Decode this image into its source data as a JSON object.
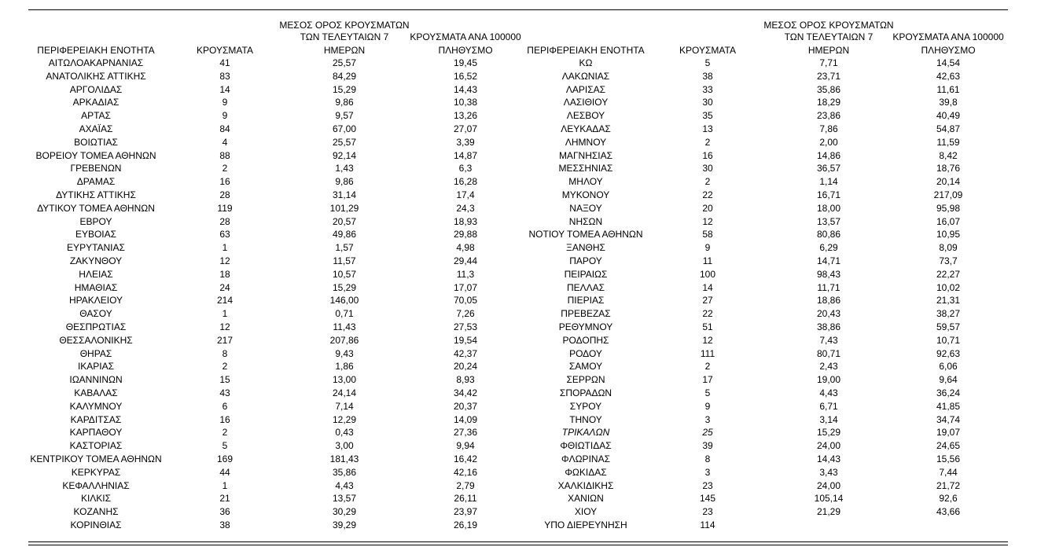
{
  "tables": [
    {
      "headers": [
        [
          "ΠΕΡΙΦΕΡΕΙΑΚΗ ΕΝΟΤΗΤΑ"
        ],
        [
          "ΚΡΟΥΣΜΑΤΑ"
        ],
        [
          "ΜΕΣΟΣ ΟΡΟΣ ΚΡΟΥΣΜΑΤΩΝ",
          "ΤΩΝ ΤΕΛΕΥΤΑΙΩΝ 7",
          "ΗΜΕΡΩΝ"
        ],
        [
          "ΚΡΟΥΣΜΑΤΑ ΑΝΑ 100000",
          "ΠΛΗΘΥΣΜΟ"
        ]
      ],
      "rows": [
        [
          "ΑΙΤΩΛΟΑΚΑΡΝΑΝΙΑΣ",
          "41",
          "25,57",
          "19,45"
        ],
        [
          "ΑΝΑΤΟΛΙΚΗΣ ΑΤΤΙΚΗΣ",
          "83",
          "84,29",
          "16,52"
        ],
        [
          "ΑΡΓΟΛΙΔΑΣ",
          "14",
          "15,29",
          "14,43"
        ],
        [
          "ΑΡΚΑΔΙΑΣ",
          "9",
          "9,86",
          "10,38"
        ],
        [
          "ΑΡΤΑΣ",
          "9",
          "9,57",
          "13,26"
        ],
        [
          "ΑΧΑΪΑΣ",
          "84",
          "67,00",
          "27,07"
        ],
        [
          "ΒΟΙΩΤΙΑΣ",
          "4",
          "25,57",
          "3,39"
        ],
        [
          "ΒΟΡΕΙΟΥ ΤΟΜΕΑ ΑΘΗΝΩΝ",
          "88",
          "92,14",
          "14,87"
        ],
        [
          "ΓΡΕΒΕΝΩΝ",
          "2",
          "1,43",
          "6,3"
        ],
        [
          "ΔΡΑΜΑΣ",
          "16",
          "9,86",
          "16,28"
        ],
        [
          "ΔΥΤΙΚΗΣ ΑΤΤΙΚΗΣ",
          "28",
          "31,14",
          "17,4"
        ],
        [
          "ΔΥΤΙΚΟΥ ΤΟΜΕΑ ΑΘΗΝΩΝ",
          "119",
          "101,29",
          "24,3"
        ],
        [
          "ΕΒΡΟΥ",
          "28",
          "20,57",
          "18,93"
        ],
        [
          "ΕΥΒΟΙΑΣ",
          "63",
          "49,86",
          "29,88"
        ],
        [
          "ΕΥΡΥΤΑΝΙΑΣ",
          "1",
          "1,57",
          "4,98"
        ],
        [
          "ΖΑΚΥΝΘΟΥ",
          "12",
          "11,57",
          "29,44"
        ],
        [
          "ΗΛΕΙΑΣ",
          "18",
          "10,57",
          "11,3"
        ],
        [
          "ΗΜΑΘΙΑΣ",
          "24",
          "15,29",
          "17,07"
        ],
        [
          "ΗΡΑΚΛΕΙΟΥ",
          "214",
          "146,00",
          "70,05"
        ],
        [
          "ΘΑΣΟΥ",
          "1",
          "0,71",
          "7,26"
        ],
        [
          "ΘΕΣΠΡΩΤΙΑΣ",
          "12",
          "11,43",
          "27,53"
        ],
        [
          "ΘΕΣΣΑΛΟΝΙΚΗΣ",
          "217",
          "207,86",
          "19,54"
        ],
        [
          "ΘΗΡΑΣ",
          "8",
          "9,43",
          "42,37"
        ],
        [
          "ΙΚΑΡΙΑΣ",
          "2",
          "1,86",
          "20,24"
        ],
        [
          "ΙΩΑΝΝΙΝΩΝ",
          "15",
          "13,00",
          "8,93"
        ],
        [
          "ΚΑΒΑΛΑΣ",
          "43",
          "24,14",
          "34,42"
        ],
        [
          "ΚΑΛΥΜΝΟΥ",
          "6",
          "7,14",
          "20,37"
        ],
        [
          "ΚΑΡΔΙΤΣΑΣ",
          "16",
          "12,29",
          "14,09"
        ],
        [
          "ΚΑΡΠΑΘΟΥ",
          "2",
          "0,43",
          "27,36"
        ],
        [
          "ΚΑΣΤΟΡΙΑΣ",
          "5",
          "3,00",
          "9,94"
        ],
        [
          "ΚΕΝΤΡΙΚΟΥ ΤΟΜΕΑ ΑΘΗΝΩΝ",
          "169",
          "181,43",
          "16,42"
        ],
        [
          "ΚΕΡΚΥΡΑΣ",
          "44",
          "35,86",
          "42,16"
        ],
        [
          "ΚΕΦΑΛΛΗΝΙΑΣ",
          "1",
          "4,43",
          "2,79"
        ],
        [
          "ΚΙΛΚΙΣ",
          "21",
          "13,57",
          "26,11"
        ],
        [
          "ΚΟΖΑΝΗΣ",
          "36",
          "30,29",
          "23,97"
        ],
        [
          "ΚΟΡΙΝΘΙΑΣ",
          "38",
          "39,29",
          "26,19"
        ]
      ]
    },
    {
      "headers": [
        [
          "ΠΕΡΙΦΕΡΕΙΑΚΗ ΕΝΟΤΗΤΑ"
        ],
        [
          "ΚΡΟΥΣΜΑΤΑ"
        ],
        [
          "ΜΕΣΟΣ ΟΡΟΣ ΚΡΟΥΣΜΑΤΩΝ",
          "ΤΩΝ ΤΕΛΕΥΤΑΙΩΝ 7",
          "ΗΜΕΡΩΝ"
        ],
        [
          "ΚΡΟΥΣΜΑΤΑ ΑΝΑ 100000",
          "ΠΛΗΘΥΣΜΟ"
        ]
      ],
      "rows": [
        [
          "ΚΩ",
          "5",
          "7,71",
          "14,54"
        ],
        [
          "ΛΑΚΩΝΙΑΣ",
          "38",
          "23,71",
          "42,63"
        ],
        [
          "ΛΑΡΙΣΑΣ",
          "33",
          "35,86",
          "11,61"
        ],
        [
          "ΛΑΣΙΘΙΟΥ",
          "30",
          "18,29",
          "39,8"
        ],
        [
          "ΛΕΣΒΟΥ",
          "35",
          "23,86",
          "40,49"
        ],
        [
          "ΛΕΥΚΑΔΑΣ",
          "13",
          "7,86",
          "54,87"
        ],
        [
          "ΛΗΜΝΟΥ",
          "2",
          "2,00",
          "11,59"
        ],
        [
          "ΜΑΓΝΗΣΙΑΣ",
          "16",
          "14,86",
          "8,42"
        ],
        [
          "ΜΕΣΣΗΝΙΑΣ",
          "30",
          "36,57",
          "18,76"
        ],
        [
          "ΜΗΛΟΥ",
          "2",
          "1,14",
          "20,14"
        ],
        [
          "ΜΥΚΟΝΟΥ",
          "22",
          "16,71",
          "217,09"
        ],
        [
          "ΝΑΞΟΥ",
          "20",
          "18,00",
          "95,98"
        ],
        [
          "ΝΗΣΩΝ",
          "12",
          "13,57",
          "16,07"
        ],
        [
          "ΝΟΤΙΟΥ ΤΟΜΕΑ ΑΘΗΝΩΝ",
          "58",
          "80,86",
          "10,95"
        ],
        [
          "ΞΑΝΘΗΣ",
          "9",
          "6,29",
          "8,09"
        ],
        [
          "ΠΑΡΟΥ",
          "11",
          "14,71",
          "73,7"
        ],
        [
          "ΠΕΙΡΑΙΩΣ",
          "100",
          "98,43",
          "22,27"
        ],
        [
          "ΠΕΛΛΑΣ",
          "14",
          "11,71",
          "10,02"
        ],
        [
          "ΠΙΕΡΙΑΣ",
          "27",
          "18,86",
          "21,31"
        ],
        [
          "ΠΡΕΒΕΖΑΣ",
          "22",
          "20,43",
          "38,27"
        ],
        [
          "ΡΕΘΥΜΝΟΥ",
          "51",
          "38,86",
          "59,57"
        ],
        [
          "ΡΟΔΟΠΗΣ",
          "12",
          "7,43",
          "10,71"
        ],
        [
          "ΡΟΔΟΥ",
          "111",
          "80,71",
          "92,63"
        ],
        [
          "ΣΑΜΟΥ",
          "2",
          "2,43",
          "6,06"
        ],
        [
          "ΣΕΡΡΩΝ",
          "17",
          "19,00",
          "9,64"
        ],
        [
          "ΣΠΟΡΑΔΩΝ",
          "5",
          "4,43",
          "36,24"
        ],
        [
          "ΣΥΡΟΥ",
          "9",
          "6,71",
          "41,85"
        ],
        [
          "ΤΗΝΟΥ",
          "3",
          "3,14",
          "34,74"
        ],
        [
          "ΤΡΙΚΑΛΩΝ",
          "25",
          "15,29",
          "19,07"
        ],
        [
          "ΦΘΙΩΤΙΔΑΣ",
          "39",
          "24,00",
          "24,65"
        ],
        [
          "ΦΛΩΡΙΝΑΣ",
          "8",
          "14,43",
          "15,56"
        ],
        [
          "ΦΩΚΙΔΑΣ",
          "3",
          "3,43",
          "7,44"
        ],
        [
          "ΧΑΛΚΙΔΙΚΗΣ",
          "23",
          "24,00",
          "21,72"
        ],
        [
          "ΧΑΝΙΩΝ",
          "145",
          "105,14",
          "92,6"
        ],
        [
          "ΧΙΟΥ",
          "23",
          "21,29",
          "43,66"
        ],
        [
          "ΥΠΟ ΔΙΕΡΕΥΝΗΣΗ",
          "114"
        ]
      ]
    }
  ]
}
